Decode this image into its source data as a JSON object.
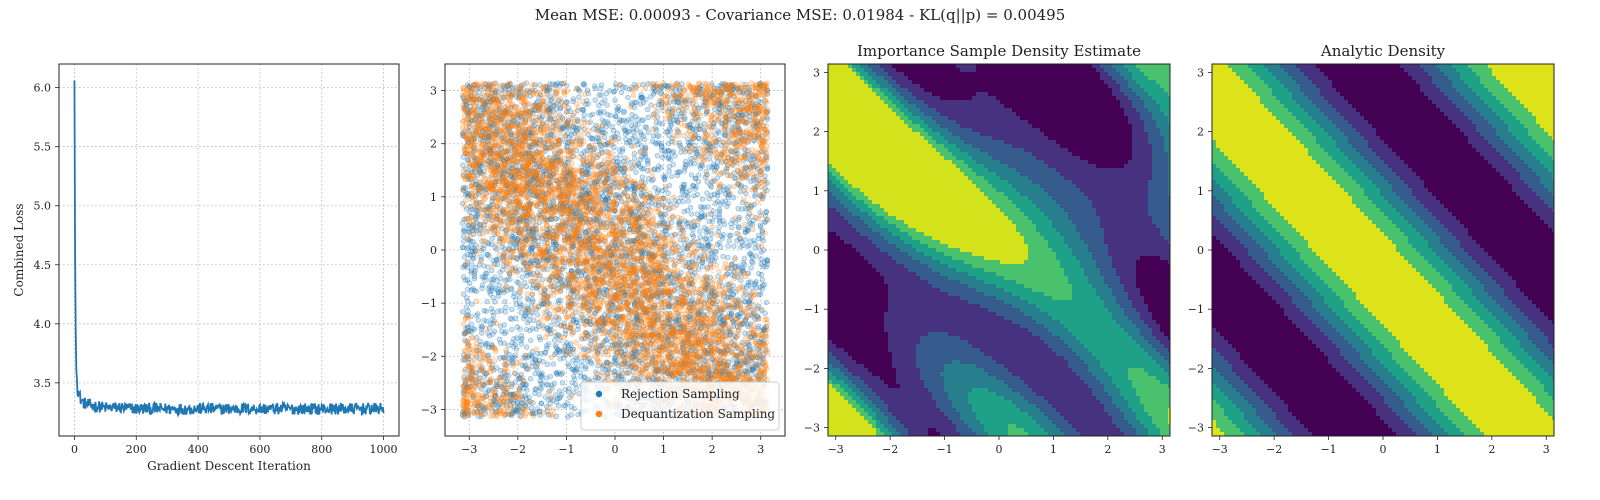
{
  "suptitle": "Mean MSE: 0.00093 - Covariance MSE: 0.01984 - KL(q||p) = 0.00495",
  "colors": {
    "blue": "#1f77b4",
    "orange": "#ff7f0e",
    "grid": "#b0b0b0",
    "viridis": [
      "#440154",
      "#46327e",
      "#365c8d",
      "#277f8e",
      "#1fa187",
      "#4ac16d",
      "#a0da39",
      "#fde725"
    ]
  },
  "chart_data": [
    {
      "type": "line",
      "title": "",
      "xlabel": "Gradient Descent Iteration",
      "ylabel": "Combined Loss",
      "xlim": [
        -50,
        1050
      ],
      "ylim": [
        3.05,
        6.2
      ],
      "xticks": [
        0,
        200,
        400,
        600,
        800,
        1000
      ],
      "yticks": [
        3.5,
        4.0,
        4.5,
        5.0,
        5.5,
        6.0
      ],
      "ytick_labels": [
        "3.5",
        "4.0",
        "4.5",
        "5.0",
        "5.5",
        "6.0"
      ],
      "grid": true,
      "series": [
        {
          "color": "blue",
          "x": [
            0,
            2,
            5,
            10,
            20,
            30,
            40,
            50,
            75,
            100,
            150,
            200,
            250,
            300,
            350,
            400,
            450,
            500,
            550,
            600,
            650,
            700,
            750,
            800,
            850,
            900,
            950,
            1000
          ],
          "y": [
            6.06,
            4.6,
            3.65,
            3.45,
            3.36,
            3.33,
            3.32,
            3.31,
            3.3,
            3.29,
            3.29,
            3.28,
            3.28,
            3.28,
            3.28,
            3.28,
            3.28,
            3.28,
            3.28,
            3.28,
            3.28,
            3.28,
            3.28,
            3.28,
            3.28,
            3.28,
            3.28,
            3.28
          ],
          "noise_band": 0.05
        }
      ]
    },
    {
      "type": "scatter",
      "title": "",
      "xlim": [
        -3.5,
        3.5
      ],
      "ylim": [
        -3.5,
        3.5
      ],
      "xticks": [
        -3,
        -2,
        -1,
        0,
        1,
        2,
        3
      ],
      "yticks": [
        -3,
        -2,
        -1,
        0,
        1,
        2,
        3
      ],
      "xtick_labels": [
        "−3",
        "−2",
        "−1",
        "0",
        "1",
        "2",
        "3"
      ],
      "ytick_labels": [
        "−3",
        "−2",
        "−1",
        "0",
        "1",
        "2",
        "3"
      ],
      "grid": true,
      "series": [
        {
          "name": "Rejection Sampling",
          "color": "blue",
          "n_points": 5000,
          "alpha": 0.3
        },
        {
          "name": "Dequantization Sampling",
          "color": "orange",
          "n_points": 5000,
          "alpha": 0.3
        }
      ],
      "density_model": "1 + cos(x + y + 0.4)",
      "legend_position": "lower-right"
    },
    {
      "type": "heatmap",
      "title": "Importance Sample Density Estimate",
      "xlim": [
        -3.14159,
        3.14159
      ],
      "ylim": [
        -3.14159,
        3.14159
      ],
      "xticks": [
        -3,
        -2,
        -1,
        0,
        1,
        2,
        3
      ],
      "yticks": [
        -3,
        -2,
        -1,
        0,
        1,
        2,
        3
      ],
      "xtick_labels": [
        "−3",
        "−2",
        "−1",
        "0",
        "1",
        "2",
        "3"
      ],
      "ytick_labels": [
        "−3",
        "−2",
        "−1",
        "0",
        "1",
        "2",
        "3"
      ],
      "colormap": "viridis",
      "levels": 7,
      "density_model": "estimated cos(x + y + 0.5) with sampling noise"
    },
    {
      "type": "heatmap",
      "title": "Analytic Density",
      "xlim": [
        -3.14159,
        3.14159
      ],
      "ylim": [
        -3.14159,
        3.14159
      ],
      "xticks": [
        -3,
        -2,
        -1,
        0,
        1,
        2,
        3
      ],
      "yticks": [
        -3,
        -2,
        -1,
        0,
        1,
        2,
        3
      ],
      "xtick_labels": [
        "−3",
        "−2",
        "−1",
        "0",
        "1",
        "2",
        "3"
      ],
      "ytick_labels": [
        "−3",
        "−2",
        "−1",
        "0",
        "1",
        "2",
        "3"
      ],
      "colormap": "viridis",
      "levels": 7,
      "density_model": "cos(x + y + 0.5)"
    }
  ]
}
